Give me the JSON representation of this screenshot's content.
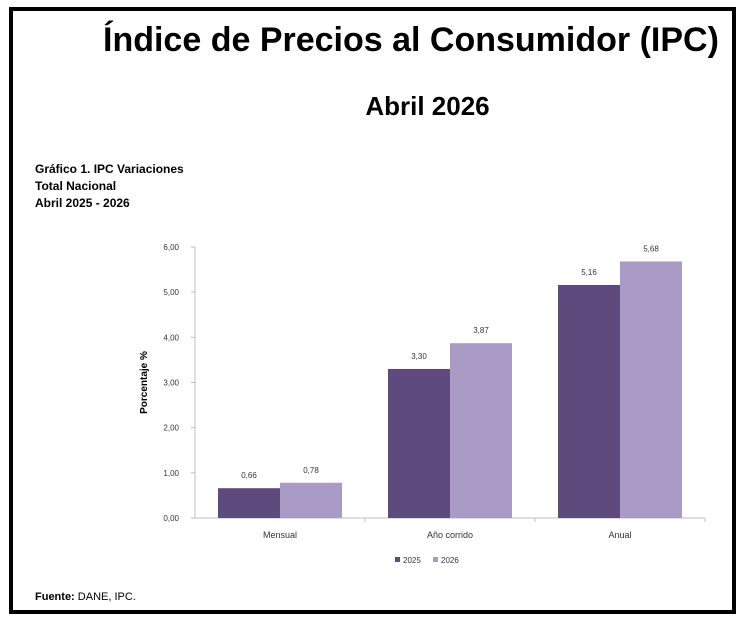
{
  "header": {
    "title": "Índice de Precios al Consumidor (IPC)",
    "subtitle": "Abril 2026"
  },
  "caption": {
    "line1": "Gráfico 1. IPC Variaciones",
    "line2": "Total Nacional",
    "line3": "Abril 2025 - 2026"
  },
  "source": {
    "label": "Fuente:",
    "text": " DANE, IPC."
  },
  "chart_data": {
    "type": "bar",
    "title": "",
    "xlabel": "",
    "ylabel": "Porcentaje %",
    "categories": [
      "Mensual",
      "Año corrido",
      "Anual"
    ],
    "series": [
      {
        "name": "2025",
        "values": [
          0.66,
          3.3,
          5.16
        ],
        "labels": [
          "0,66",
          "3,30",
          "5,16"
        ],
        "color": "#5e4a7d"
      },
      {
        "name": "2026",
        "values": [
          0.78,
          3.87,
          5.68
        ],
        "labels": [
          "0,78",
          "3,87",
          "5,68"
        ],
        "color": "#a99bc6"
      }
    ],
    "ylim": [
      0,
      6
    ],
    "yticks": [
      0,
      1,
      2,
      3,
      4,
      5,
      6
    ],
    "yticklabels": [
      "0,00",
      "1,00",
      "2,00",
      "3,00",
      "4,00",
      "5,00",
      "6,00"
    ],
    "grid": false,
    "legend": "bottom"
  }
}
